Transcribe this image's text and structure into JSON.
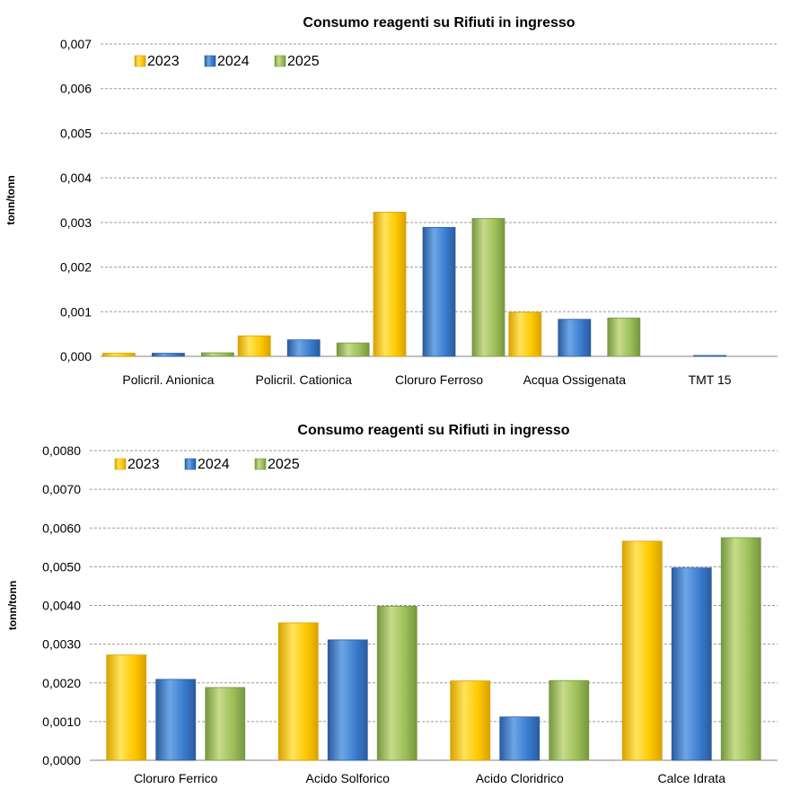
{
  "colors": {
    "2023": {
      "light": "#ffe45c",
      "base": "#ffc800",
      "dark": "#d9a100"
    },
    "2024": {
      "light": "#6ea6e6",
      "base": "#3a7dd0",
      "dark": "#2a5b9e"
    },
    "2025": {
      "light": "#c6dc8a",
      "base": "#9ebf58",
      "dark": "#779640"
    }
  },
  "chart_data": [
    {
      "type": "bar",
      "title": "Consumo reagenti su Rifiuti in ingresso",
      "ylabel": "tonn/tonn",
      "xlabel": "",
      "ylim": [
        0,
        0.007
      ],
      "yticks": [
        "0,000",
        "0,001",
        "0,002",
        "0,003",
        "0,004",
        "0,005",
        "0,006",
        "0,007"
      ],
      "legend_position": "top-left",
      "grid": true,
      "categories": [
        "Policril. Anionica",
        "Policril. Cationica",
        "Cloruro Ferroso",
        "Acqua Ossigenata",
        "TMT 15"
      ],
      "series": [
        {
          "name": "2023",
          "values": [
            7e-05,
            0.00046,
            0.00323,
            0.00099,
            0.0
          ]
        },
        {
          "name": "2024",
          "values": [
            7e-05,
            0.00037,
            0.00289,
            0.00083,
            1e-05
          ]
        },
        {
          "name": "2025",
          "values": [
            8e-05,
            0.0003,
            0.00309,
            0.00086,
            0.0
          ]
        }
      ]
    },
    {
      "type": "bar",
      "title": "Consumo reagenti su Rifiuti in ingresso",
      "ylabel": "tonn/tonn",
      "xlabel": "",
      "ylim": [
        0,
        0.008
      ],
      "yticks": [
        "0,0000",
        "0,0010",
        "0,0020",
        "0,0030",
        "0,0040",
        "0,0050",
        "0,0060",
        "0,0070",
        "0,0080"
      ],
      "legend_position": "top-left",
      "grid": true,
      "categories": [
        "Cloruro Ferrico",
        "Acido Solforico",
        "Acido Cloridrico",
        "Calce Idrata"
      ],
      "series": [
        {
          "name": "2023",
          "values": [
            0.00272,
            0.00355,
            0.00205,
            0.00566
          ]
        },
        {
          "name": "2024",
          "values": [
            0.00209,
            0.00311,
            0.00112,
            0.00497
          ]
        },
        {
          "name": "2025",
          "values": [
            0.00188,
            0.00398,
            0.00206,
            0.00575
          ]
        }
      ]
    }
  ]
}
